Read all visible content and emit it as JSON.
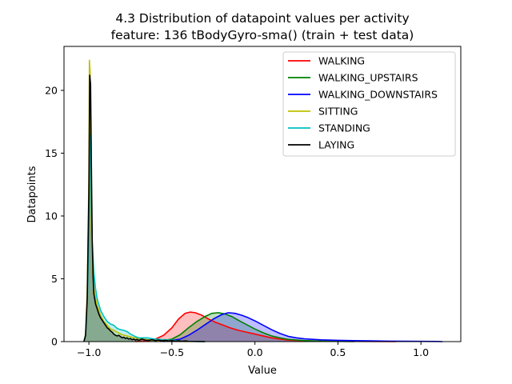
{
  "chart_data": {
    "type": "area",
    "title": "4.3 Distribution of datapoint values per activity",
    "subtitle": "feature: 136 tBodyGyro-sma() (train + test data)",
    "xlabel": "Value",
    "ylabel": "Datapoints",
    "xlim": [
      -1.15,
      1.24
    ],
    "ylim": [
      0,
      23.5
    ],
    "x_ticks": [
      -1.0,
      -0.5,
      0.0,
      0.5,
      1.0
    ],
    "x_tick_labels": [
      "−1.0",
      "−0.5",
      "0.0",
      "0.5",
      "1.0"
    ],
    "y_ticks": [
      0,
      5,
      10,
      15,
      20
    ],
    "y_tick_labels": [
      "0",
      "5",
      "10",
      "15",
      "20"
    ],
    "grid": false,
    "legend_position": "top-right",
    "series": [
      {
        "name": "WALKING",
        "color": "#ff0000",
        "fill": true,
        "points": [
          [
            -0.72,
            0
          ],
          [
            -0.65,
            0.05
          ],
          [
            -0.6,
            0.2
          ],
          [
            -0.55,
            0.5
          ],
          [
            -0.5,
            1.1
          ],
          [
            -0.46,
            1.8
          ],
          [
            -0.42,
            2.25
          ],
          [
            -0.39,
            2.35
          ],
          [
            -0.36,
            2.3
          ],
          [
            -0.32,
            2.1
          ],
          [
            -0.28,
            1.8
          ],
          [
            -0.24,
            1.55
          ],
          [
            -0.2,
            1.35
          ],
          [
            -0.15,
            1.1
          ],
          [
            -0.1,
            0.9
          ],
          [
            -0.05,
            0.75
          ],
          [
            0.0,
            0.6
          ],
          [
            0.05,
            0.45
          ],
          [
            0.1,
            0.3
          ],
          [
            0.15,
            0.2
          ],
          [
            0.2,
            0.12
          ],
          [
            0.3,
            0.07
          ],
          [
            0.4,
            0.04
          ],
          [
            0.5,
            0.03
          ],
          [
            0.6,
            0.02
          ],
          [
            0.7,
            0.01
          ],
          [
            0.85,
            0
          ]
        ]
      },
      {
        "name": "WALKING_UPSTAIRS",
        "color": "#008000",
        "fill": true,
        "points": [
          [
            -0.6,
            0
          ],
          [
            -0.5,
            0.2
          ],
          [
            -0.45,
            0.55
          ],
          [
            -0.4,
            1.1
          ],
          [
            -0.35,
            1.6
          ],
          [
            -0.3,
            2.0
          ],
          [
            -0.26,
            2.25
          ],
          [
            -0.22,
            2.3
          ],
          [
            -0.18,
            2.2
          ],
          [
            -0.14,
            2.0
          ],
          [
            -0.1,
            1.7
          ],
          [
            -0.05,
            1.35
          ],
          [
            0.0,
            1.0
          ],
          [
            0.05,
            0.7
          ],
          [
            0.1,
            0.45
          ],
          [
            0.15,
            0.3
          ],
          [
            0.2,
            0.18
          ],
          [
            0.3,
            0.08
          ],
          [
            0.4,
            0.04
          ],
          [
            0.5,
            0.02
          ],
          [
            0.6,
            0
          ]
        ]
      },
      {
        "name": "WALKING_DOWNSTAIRS",
        "color": "#0000ff",
        "fill": true,
        "points": [
          [
            -0.55,
            0
          ],
          [
            -0.45,
            0.2
          ],
          [
            -0.4,
            0.5
          ],
          [
            -0.35,
            0.9
          ],
          [
            -0.3,
            1.35
          ],
          [
            -0.25,
            1.8
          ],
          [
            -0.2,
            2.15
          ],
          [
            -0.16,
            2.3
          ],
          [
            -0.12,
            2.25
          ],
          [
            -0.08,
            2.1
          ],
          [
            -0.04,
            1.9
          ],
          [
            0.0,
            1.65
          ],
          [
            0.05,
            1.3
          ],
          [
            0.1,
            0.95
          ],
          [
            0.15,
            0.65
          ],
          [
            0.2,
            0.42
          ],
          [
            0.25,
            0.3
          ],
          [
            0.3,
            0.22
          ],
          [
            0.4,
            0.14
          ],
          [
            0.5,
            0.1
          ],
          [
            0.6,
            0.08
          ],
          [
            0.7,
            0.06
          ],
          [
            0.8,
            0.04
          ],
          [
            0.9,
            0.03
          ],
          [
            1.0,
            0.02
          ],
          [
            1.1,
            0.01
          ],
          [
            1.13,
            0
          ]
        ]
      },
      {
        "name": "SITTING",
        "color": "#bfbf00",
        "fill": true,
        "points": [
          [
            -1.03,
            0
          ],
          [
            -1.02,
            0.6
          ],
          [
            -1.01,
            4.0
          ],
          [
            -1.0,
            13.0
          ],
          [
            -0.997,
            22.4
          ],
          [
            -0.993,
            21.5
          ],
          [
            -0.99,
            15.0
          ],
          [
            -0.985,
            9.5
          ],
          [
            -0.98,
            6.0
          ],
          [
            -0.97,
            4.2
          ],
          [
            -0.96,
            3.4
          ],
          [
            -0.95,
            2.9
          ],
          [
            -0.93,
            2.1
          ],
          [
            -0.91,
            1.6
          ],
          [
            -0.89,
            1.3
          ],
          [
            -0.87,
            1.0
          ],
          [
            -0.85,
            0.9
          ],
          [
            -0.83,
            0.75
          ],
          [
            -0.8,
            0.55
          ],
          [
            -0.77,
            0.45
          ],
          [
            -0.74,
            0.35
          ],
          [
            -0.7,
            0.25
          ],
          [
            -0.65,
            0.15
          ],
          [
            -0.6,
            0.08
          ],
          [
            -0.5,
            0.03
          ],
          [
            -0.4,
            0
          ]
        ]
      },
      {
        "name": "STANDING",
        "color": "#00bfbf",
        "fill": true,
        "points": [
          [
            -1.03,
            0
          ],
          [
            -1.02,
            0.5
          ],
          [
            -1.01,
            3.0
          ],
          [
            -1.0,
            9.0
          ],
          [
            -0.995,
            16.5
          ],
          [
            -0.99,
            15.5
          ],
          [
            -0.985,
            11.0
          ],
          [
            -0.98,
            8.0
          ],
          [
            -0.97,
            5.5
          ],
          [
            -0.96,
            4.2
          ],
          [
            -0.95,
            3.4
          ],
          [
            -0.93,
            2.5
          ],
          [
            -0.91,
            2.0
          ],
          [
            -0.89,
            1.6
          ],
          [
            -0.87,
            1.4
          ],
          [
            -0.85,
            1.3
          ],
          [
            -0.83,
            1.05
          ],
          [
            -0.81,
            0.95
          ],
          [
            -0.79,
            0.9
          ],
          [
            -0.77,
            0.8
          ],
          [
            -0.75,
            0.6
          ],
          [
            -0.72,
            0.4
          ],
          [
            -0.7,
            0.3
          ],
          [
            -0.65,
            0.3
          ],
          [
            -0.6,
            0.2
          ],
          [
            -0.55,
            0.15
          ],
          [
            -0.5,
            0.1
          ],
          [
            -0.45,
            0.05
          ],
          [
            -0.4,
            0.02
          ],
          [
            -0.3,
            0
          ]
        ]
      },
      {
        "name": "LAYING",
        "color": "#000000",
        "fill": true,
        "points": [
          [
            -1.03,
            0
          ],
          [
            -1.02,
            0.5
          ],
          [
            -1.01,
            3.5
          ],
          [
            -1.0,
            12.0
          ],
          [
            -0.995,
            21.2
          ],
          [
            -0.99,
            20.5
          ],
          [
            -0.985,
            14.0
          ],
          [
            -0.98,
            8.0
          ],
          [
            -0.975,
            5.2
          ],
          [
            -0.97,
            3.8
          ],
          [
            -0.96,
            3.0
          ],
          [
            -0.95,
            2.6
          ],
          [
            -0.94,
            2.2
          ],
          [
            -0.93,
            1.9
          ],
          [
            -0.92,
            1.7
          ],
          [
            -0.91,
            1.5
          ],
          [
            -0.9,
            1.3
          ],
          [
            -0.89,
            1.1
          ],
          [
            -0.88,
            1.0
          ],
          [
            -0.87,
            0.85
          ],
          [
            -0.86,
            0.75
          ],
          [
            -0.85,
            0.6
          ],
          [
            -0.84,
            0.5
          ],
          [
            -0.83,
            0.45
          ],
          [
            -0.82,
            0.5
          ],
          [
            -0.81,
            0.4
          ],
          [
            -0.8,
            0.3
          ],
          [
            -0.79,
            0.35
          ],
          [
            -0.78,
            0.25
          ],
          [
            -0.77,
            0.3
          ],
          [
            -0.76,
            0.2
          ],
          [
            -0.75,
            0.25
          ],
          [
            -0.74,
            0.15
          ],
          [
            -0.73,
            0.2
          ],
          [
            -0.72,
            0.12
          ],
          [
            -0.71,
            0.18
          ],
          [
            -0.7,
            0.1
          ],
          [
            -0.68,
            0.2
          ],
          [
            -0.66,
            0.12
          ],
          [
            -0.64,
            0.1
          ],
          [
            -0.62,
            0.15
          ],
          [
            -0.6,
            0.08
          ],
          [
            -0.58,
            0.12
          ],
          [
            -0.56,
            0.06
          ],
          [
            -0.54,
            0.1
          ],
          [
            -0.52,
            0.05
          ],
          [
            -0.5,
            0.08
          ],
          [
            -0.48,
            0.04
          ],
          [
            -0.46,
            0.06
          ],
          [
            -0.44,
            0.03
          ],
          [
            -0.42,
            0.05
          ],
          [
            -0.4,
            0.02
          ],
          [
            -0.35,
            0.01
          ],
          [
            -0.3,
            0
          ]
        ]
      }
    ]
  }
}
